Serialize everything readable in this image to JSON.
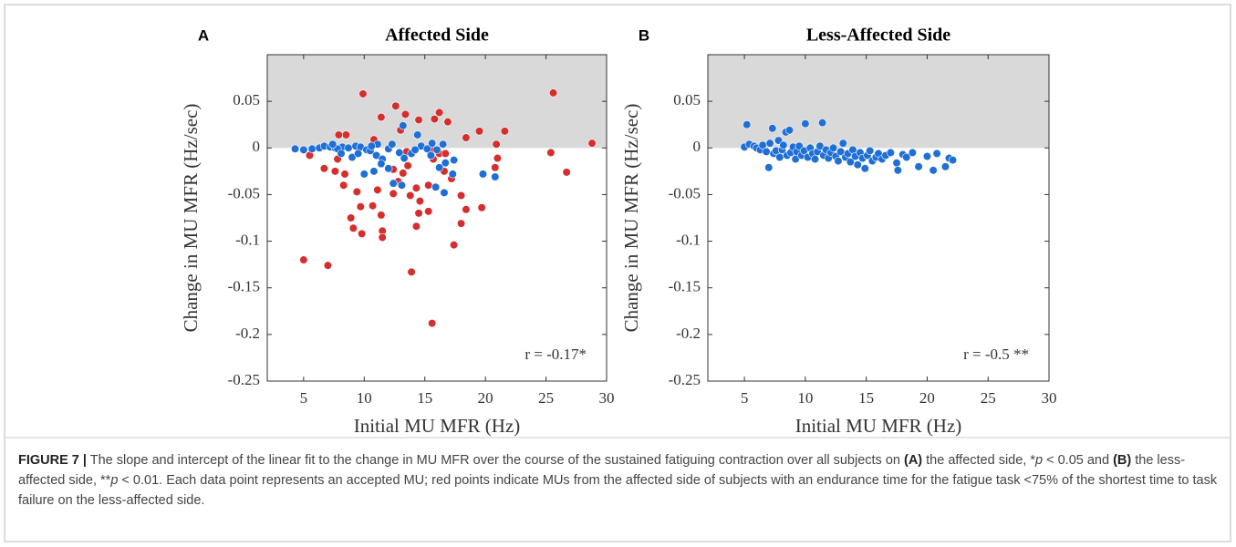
{
  "chart_data": [
    {
      "type": "scatter",
      "label": "A",
      "title": "Affected Side",
      "xlabel": "Initial MU MFR (Hz)",
      "ylabel": "Change in MU MFR (Hz/sec)",
      "annotation": "r = -0.17*",
      "xlim": [
        2,
        30
      ],
      "xticks": [
        5,
        10,
        15,
        20,
        25,
        30
      ],
      "ylim": [
        -0.25,
        0.1
      ],
      "yticks": [
        -0.25,
        -0.2,
        -0.15,
        -0.1,
        -0.05,
        0,
        0.05
      ],
      "shade": {
        "from": 0,
        "color": "#d9d9d9"
      },
      "series": [
        {
          "color": "#d62d2d",
          "x": [
            9.9,
            12.6,
            25.6,
            28.8,
            11.4,
            13.4,
            14.5,
            13.0,
            16.2,
            15.8,
            16.9,
            19.5,
            18.4,
            21.6,
            20.9,
            25.4,
            26.7,
            10.8,
            8.5,
            7.9,
            7.8,
            5.5,
            6.7,
            7.6,
            8.4,
            8.3,
            9.4,
            9.7,
            8.9,
            9.1,
            10.7,
            11.4,
            11.5,
            9.8,
            11.5,
            12.4,
            12.8,
            12.4,
            13.2,
            13.6,
            13.8,
            14.3,
            14.6,
            14.5,
            15.3,
            14.3,
            15.3,
            15.7,
            15.7,
            16.2,
            16.7,
            16.6,
            17.2,
            18.0,
            18.4,
            18.0,
            17.4,
            19.7,
            20.8,
            21.0,
            5.0,
            7.0,
            13.9,
            15.6,
            11.1,
            13.5
          ],
          "values": [
            0.058,
            0.045,
            0.059,
            0.005,
            0.033,
            0.036,
            0.03,
            0.019,
            0.038,
            0.031,
            0.028,
            0.018,
            0.011,
            0.018,
            0.004,
            -0.005,
            -0.026,
            0.009,
            0.014,
            0.014,
            -0.012,
            -0.008,
            -0.022,
            -0.025,
            -0.028,
            -0.04,
            -0.047,
            -0.063,
            -0.075,
            -0.086,
            -0.062,
            -0.072,
            -0.089,
            -0.092,
            -0.096,
            -0.049,
            -0.036,
            -0.023,
            -0.027,
            -0.019,
            -0.051,
            -0.043,
            -0.057,
            -0.07,
            -0.068,
            -0.084,
            -0.04,
            -0.001,
            -0.012,
            -0.006,
            -0.006,
            -0.025,
            -0.033,
            -0.051,
            -0.066,
            -0.081,
            -0.104,
            -0.064,
            -0.021,
            -0.011,
            -0.12,
            -0.126,
            -0.133,
            -0.188,
            -0.045,
            -0.004
          ]
        },
        {
          "color": "#1f6fd6",
          "x": [
            4.3,
            5.0,
            5.7,
            6.3,
            6.7,
            7.2,
            7.6,
            8.2,
            8.7,
            9.3,
            9.7,
            10.2,
            10.5,
            9.0,
            9.5,
            11.0,
            11.5,
            12.0,
            12.3,
            12.9,
            13.3,
            13.9,
            14.4,
            14.7,
            15.2,
            15.6,
            16.0,
            16.5,
            16.7,
            16.2,
            17.3,
            16.6,
            15.9,
            15.5,
            12.4,
            13.1,
            12.0,
            11.4,
            10.0,
            10.8,
            7.8,
            8.1,
            7.4,
            20.8,
            19.8,
            17.4,
            13.2,
            11.1,
            14.2,
            10.6
          ],
          "values": [
            -0.001,
            -0.002,
            -0.001,
            0,
            0.002,
            0.001,
            0,
            0.001,
            0,
            0.002,
            0.001,
            -0.002,
            -0.003,
            -0.01,
            -0.006,
            -0.008,
            -0.012,
            -0.001,
            0.004,
            -0.005,
            -0.011,
            -0.006,
            0.014,
            0.002,
            -0.001,
            0.005,
            -0.002,
            0.004,
            -0.016,
            -0.021,
            -0.028,
            -0.048,
            -0.042,
            -0.008,
            -0.038,
            -0.04,
            -0.022,
            -0.017,
            -0.028,
            -0.025,
            -0.001,
            -0.006,
            0.004,
            -0.031,
            -0.028,
            -0.013,
            0.024,
            0.004,
            -0.002,
            0.002
          ]
        }
      ]
    },
    {
      "type": "scatter",
      "label": "B",
      "title": "Less-Affected Side",
      "xlabel": "Initial MU MFR (Hz)",
      "ylabel": "Change in MU MFR (Hz/sec)",
      "annotation": "r = -0.5 **",
      "xlim": [
        2,
        30
      ],
      "xticks": [
        5,
        10,
        15,
        20,
        25,
        30
      ],
      "ylim": [
        -0.25,
        0.1
      ],
      "yticks": [
        -0.25,
        -0.2,
        -0.15,
        -0.1,
        -0.05,
        0,
        0.05
      ],
      "shade": {
        "from": 0,
        "color": "#d9d9d9"
      },
      "series": [
        {
          "color": "#1f6fd6",
          "x": [
            5.0,
            5.2,
            5.4,
            5.8,
            6.0,
            6.3,
            6.5,
            6.8,
            7.0,
            7.1,
            7.3,
            7.4,
            7.6,
            7.8,
            7.9,
            8.1,
            8.2,
            8.4,
            8.5,
            8.7,
            8.8,
            9.0,
            9.2,
            9.3,
            9.5,
            9.7,
            9.9,
            10.0,
            10.2,
            10.4,
            10.6,
            10.8,
            11.0,
            11.2,
            11.4,
            11.5,
            11.7,
            11.9,
            12.1,
            12.3,
            12.5,
            12.7,
            12.9,
            13.1,
            13.3,
            13.5,
            13.7,
            13.9,
            14.1,
            14.3,
            14.5,
            14.7,
            14.9,
            15.1,
            15.3,
            15.5,
            15.8,
            16.0,
            16.3,
            16.6,
            17.0,
            17.5,
            17.6,
            18.0,
            18.3,
            18.8,
            19.3,
            20.0,
            20.5,
            20.8,
            21.5,
            21.8,
            22.1
          ],
          "values": [
            0.001,
            0.025,
            0.004,
            0.002,
            0.0,
            -0.002,
            0.003,
            -0.004,
            -0.021,
            0.005,
            0.021,
            -0.006,
            -0.003,
            0.008,
            -0.01,
            -0.002,
            0.003,
            0.017,
            -0.008,
            0.019,
            -0.005,
            0.001,
            -0.012,
            -0.004,
            0.002,
            -0.008,
            -0.003,
            0.026,
            -0.01,
            0.0,
            -0.006,
            -0.012,
            -0.004,
            0.002,
            0.027,
            -0.008,
            -0.002,
            -0.011,
            -0.005,
            0.0,
            -0.009,
            -0.014,
            -0.004,
            0.005,
            -0.01,
            -0.006,
            -0.015,
            -0.002,
            -0.009,
            -0.018,
            -0.005,
            -0.011,
            -0.022,
            -0.008,
            -0.003,
            -0.014,
            -0.01,
            -0.006,
            -0.012,
            -0.008,
            -0.005,
            -0.016,
            -0.024,
            -0.007,
            -0.01,
            -0.005,
            -0.02,
            -0.009,
            -0.024,
            -0.006,
            -0.02,
            -0.011,
            -0.013
          ]
        }
      ]
    }
  ],
  "caption": [
    "FIGURE 7 |",
    " The slope and intercept of the linear fit to the change in MU MFR over the course of the sustained fatiguing contraction over all subjects on ",
    "(A)",
    " the affected side, *",
    "p",
    " < 0.05 and ",
    "(B)",
    " the less-affected side, **",
    "p",
    " < 0.01. Each data point represents an accepted MU; red points indicate MUs from the affected side of subjects with an endurance time for the fatigue task <75% of the shortest time to task failure on the less-affected side."
  ]
}
